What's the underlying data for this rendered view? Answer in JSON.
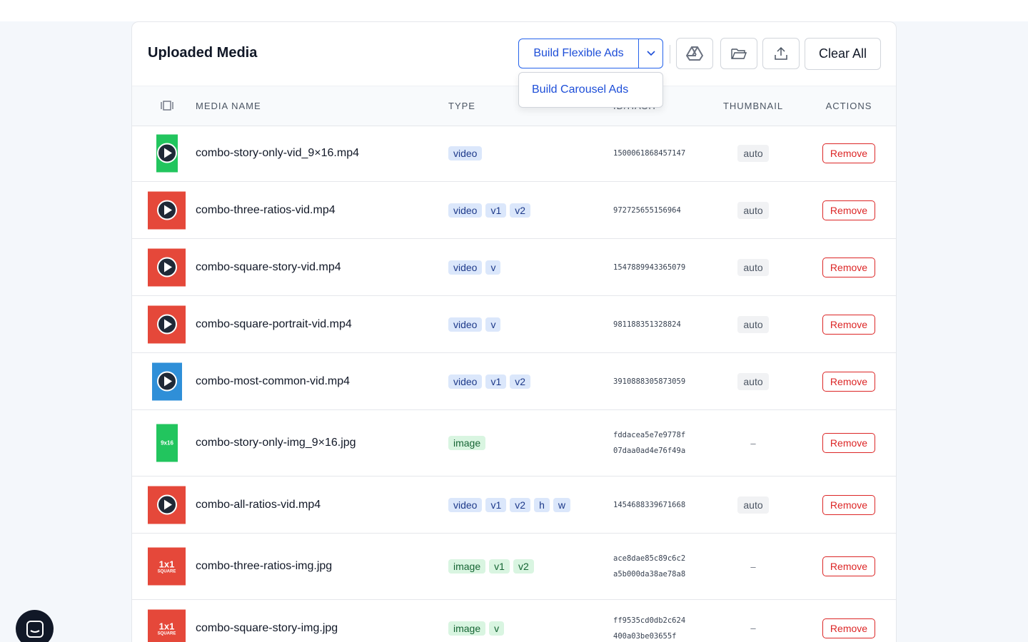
{
  "header": {
    "title": "Uploaded Media",
    "primary_button": "Build Flexible Ads",
    "dropdown_item": "Build Carousel Ads",
    "clear_button": "Clear All"
  },
  "table": {
    "columns": [
      "MEDIA NAME",
      "TYPE",
      "ID/HASH",
      "THUMBNAIL",
      "ACTIONS"
    ],
    "rows": [
      {
        "name": "combo-story-only-vid_9×16.mp4",
        "tags": [
          "video"
        ],
        "id": "1500061868457147",
        "thumbnail": "auto",
        "action": "Remove",
        "preview": {
          "kind": "video",
          "shape": "portrait",
          "color": "#22c55e"
        }
      },
      {
        "name": "combo-three-ratios-vid.mp4",
        "tags": [
          "video",
          "v1",
          "v2"
        ],
        "id": "972725655156964",
        "thumbnail": "auto",
        "action": "Remove",
        "preview": {
          "kind": "video",
          "shape": "square",
          "color": "#e5483a"
        }
      },
      {
        "name": "combo-square-story-vid.mp4",
        "tags": [
          "video",
          "v"
        ],
        "id": "1547889943365079",
        "thumbnail": "auto",
        "action": "Remove",
        "preview": {
          "kind": "video",
          "shape": "square",
          "color": "#e5483a"
        }
      },
      {
        "name": "combo-square-portrait-vid.mp4",
        "tags": [
          "video",
          "v"
        ],
        "id": "981188351328824",
        "thumbnail": "auto",
        "action": "Remove",
        "preview": {
          "kind": "video",
          "shape": "square",
          "color": "#e5483a"
        }
      },
      {
        "name": "combo-most-common-vid.mp4",
        "tags": [
          "video",
          "v1",
          "v2"
        ],
        "id": "3910888305873059",
        "thumbnail": "auto",
        "action": "Remove",
        "preview": {
          "kind": "video",
          "shape": "tall",
          "color": "#2f8fd8"
        }
      },
      {
        "name": "combo-story-only-img_9×16.jpg",
        "tags": [
          "image"
        ],
        "id": "fddacea5e7e9778f07daa0ad4e76f49a",
        "thumbnail": "–",
        "action": "Remove",
        "preview": {
          "kind": "image",
          "shape": "portrait",
          "color": "#22c55e",
          "label": "9x16"
        }
      },
      {
        "name": "combo-all-ratios-vid.mp4",
        "tags": [
          "video",
          "v1",
          "v2",
          "h",
          "w"
        ],
        "id": "1454688339671668",
        "thumbnail": "auto",
        "action": "Remove",
        "preview": {
          "kind": "video",
          "shape": "square",
          "color": "#e5483a"
        }
      },
      {
        "name": "combo-three-ratios-img.jpg",
        "tags": [
          "image",
          "v1",
          "v2"
        ],
        "id": "ace8dae85c89c6c2a5b000da38ae78a8",
        "thumbnail": "–",
        "action": "Remove",
        "preview": {
          "kind": "image",
          "shape": "square",
          "color": "#e5483a",
          "label": "1x1",
          "sublabel": "SQUARE"
        }
      },
      {
        "name": "combo-square-story-img.jpg",
        "tags": [
          "image",
          "v"
        ],
        "id": "ff9535cd0db2c624400a03be03655f",
        "thumbnail": "–",
        "action": "Remove",
        "preview": {
          "kind": "image",
          "shape": "square",
          "color": "#e5483a",
          "label": "1x1",
          "sublabel": "SQUARE"
        }
      }
    ]
  }
}
